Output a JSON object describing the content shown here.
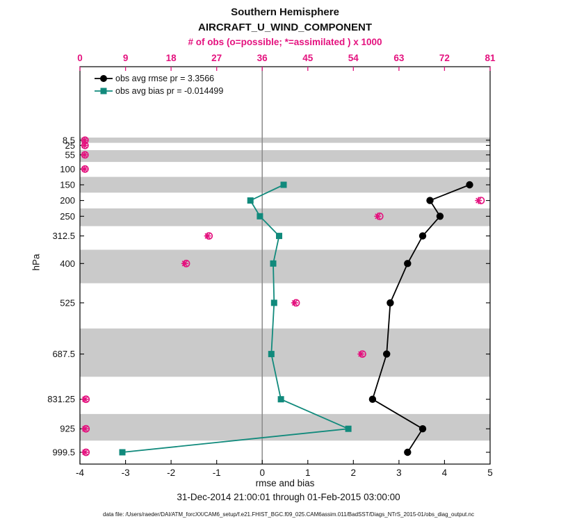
{
  "title": {
    "line1": "Southern Hemisphere",
    "line2": "AIRCRAFT_U_WIND_COMPONENT"
  },
  "top_axis": {
    "label": "# of obs (o=possible; *=assimilated ) x 1000",
    "color": "#e4117e"
  },
  "bottom_axis": {
    "label": "rmse and bias"
  },
  "left_axis": {
    "label": "hPa"
  },
  "legend": {
    "rmse_label": "obs avg rmse pr = 3.3566",
    "bias_label": "obs avg bias pr = -0.014499"
  },
  "footer": {
    "daterange": "31-Dec-2014 21:00:01 through 01-Feb-2015 03:00:00",
    "datafile": "data file: /Users/raeder/DAI/ATM_forcXX/CAM6_setup/f.e21.FHIST_BGC.f09_025.CAM6assim.011/BadSST/Diags_NTrS_2015-01/obs_diag_output.nc"
  },
  "chart_data": {
    "type": "line",
    "title": "Southern Hemisphere AIRCRAFT_U_WIND_COMPONENT vertical profile",
    "x_bottom": {
      "label": "rmse and bias",
      "min": -4,
      "max": 5,
      "ticks": [
        -4,
        -3,
        -2,
        -1,
        0,
        1,
        2,
        3,
        4,
        5
      ]
    },
    "x_top": {
      "label": "# of obs (o=possible; *=assimilated ) x 1000",
      "min": 0,
      "max": 81,
      "ticks": [
        0,
        9,
        18,
        27,
        36,
        45,
        54,
        63,
        72,
        81
      ]
    },
    "y_axis": {
      "label": "hPa",
      "reversed": true,
      "value_at_top": -225,
      "value_at_bottom": 1037,
      "ticks": [
        {
          "value": 8.5,
          "label": "8.5"
        },
        {
          "value": 25,
          "label": "25"
        },
        {
          "value": 55,
          "label": "55"
        },
        {
          "value": 100,
          "label": "100"
        },
        {
          "value": 150,
          "label": "150"
        },
        {
          "value": 200,
          "label": "200"
        },
        {
          "value": 250,
          "label": "250"
        },
        {
          "value": 312.5,
          "label": "312.5"
        },
        {
          "value": 400,
          "label": "400"
        },
        {
          "value": 525,
          "label": "525"
        },
        {
          "value": 687.5,
          "label": "687.5"
        },
        {
          "value": 831.25,
          "label": "831.25"
        },
        {
          "value": 925,
          "label": "925"
        },
        {
          "value": 999.5,
          "label": "999.5"
        }
      ]
    },
    "levels": [
      150,
      200,
      250,
      312.5,
      400,
      525,
      687.5,
      831.25,
      925,
      999.5
    ],
    "series": [
      {
        "id": "rmse",
        "name": "obs avg rmse",
        "marker": "circle",
        "color": "#000000",
        "pr_value": 3.3566,
        "values": [
          4.55,
          3.68,
          3.9,
          3.52,
          3.19,
          2.81,
          2.73,
          2.42,
          3.52,
          3.19
        ]
      },
      {
        "id": "bias",
        "name": "obs avg bias",
        "marker": "square",
        "color": "#118a7c",
        "pr_value": -0.014499,
        "values": [
          0.47,
          -0.26,
          -0.05,
          0.37,
          0.24,
          0.26,
          0.2,
          0.41,
          1.89,
          -3.07
        ]
      }
    ],
    "obs_counts": {
      "units": "x 1000",
      "levels": [
        8.5,
        25,
        55,
        100,
        200,
        250,
        312.5,
        400,
        525,
        687.5,
        831.25,
        925,
        999.5
      ],
      "possible": [
        1.0,
        1.0,
        1.0,
        1.0,
        79.2,
        59.2,
        25.5,
        21.0,
        42.7,
        55.8,
        1.2,
        1.2,
        1.2
      ],
      "assimilated": [
        0.9,
        0.9,
        0.9,
        0.9,
        78.7,
        58.8,
        25.2,
        20.7,
        42.4,
        55.5,
        1.0,
        1.0,
        1.0
      ]
    },
    "shaded_bands": [
      [
        0,
        16.75
      ],
      [
        40,
        77.5
      ],
      [
        125,
        175
      ],
      [
        225,
        281.25
      ],
      [
        356.25,
        462.5
      ],
      [
        606.25,
        759.5
      ],
      [
        878,
        962.5
      ]
    ],
    "zero_line_x": 0,
    "colors": {
      "obs": "#e4117e",
      "band": "#cacaca",
      "zero_line": "#8a8a8a",
      "rmse": "#000000",
      "bias": "#118a7c",
      "box": "#000000"
    }
  }
}
